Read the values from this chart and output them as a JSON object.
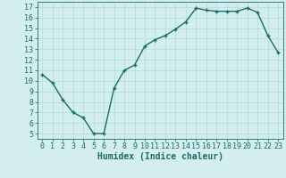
{
  "x": [
    0,
    1,
    2,
    3,
    4,
    5,
    6,
    7,
    8,
    9,
    10,
    11,
    12,
    13,
    14,
    15,
    16,
    17,
    18,
    19,
    20,
    21,
    22,
    23
  ],
  "y": [
    10.6,
    9.8,
    8.2,
    7.0,
    6.5,
    5.0,
    5.0,
    9.3,
    11.0,
    11.5,
    13.3,
    13.9,
    14.3,
    14.9,
    15.6,
    16.9,
    16.7,
    16.6,
    16.6,
    16.6,
    16.9,
    16.5,
    14.3,
    12.7
  ],
  "xlabel": "Humidex (Indice chaleur)",
  "line_color": "#1a6b6b",
  "marker": "+",
  "marker_size": 3.5,
  "marker_edge_width": 1.0,
  "background_color": "#d4eeee",
  "grid_color": "#aadddd",
  "tick_color": "#1a6b6b",
  "spine_color": "#1a6b6b",
  "xlim": [
    -0.5,
    23.5
  ],
  "ylim": [
    4.5,
    17.5
  ],
  "yticks": [
    5,
    6,
    7,
    8,
    9,
    10,
    11,
    12,
    13,
    14,
    15,
    16,
    17
  ],
  "xticks": [
    0,
    1,
    2,
    3,
    4,
    5,
    6,
    7,
    8,
    9,
    10,
    11,
    12,
    13,
    14,
    15,
    16,
    17,
    18,
    19,
    20,
    21,
    22,
    23
  ],
  "xlabel_fontsize": 7,
  "tick_fontsize": 6,
  "line_width": 1.0,
  "font_family": "monospace"
}
